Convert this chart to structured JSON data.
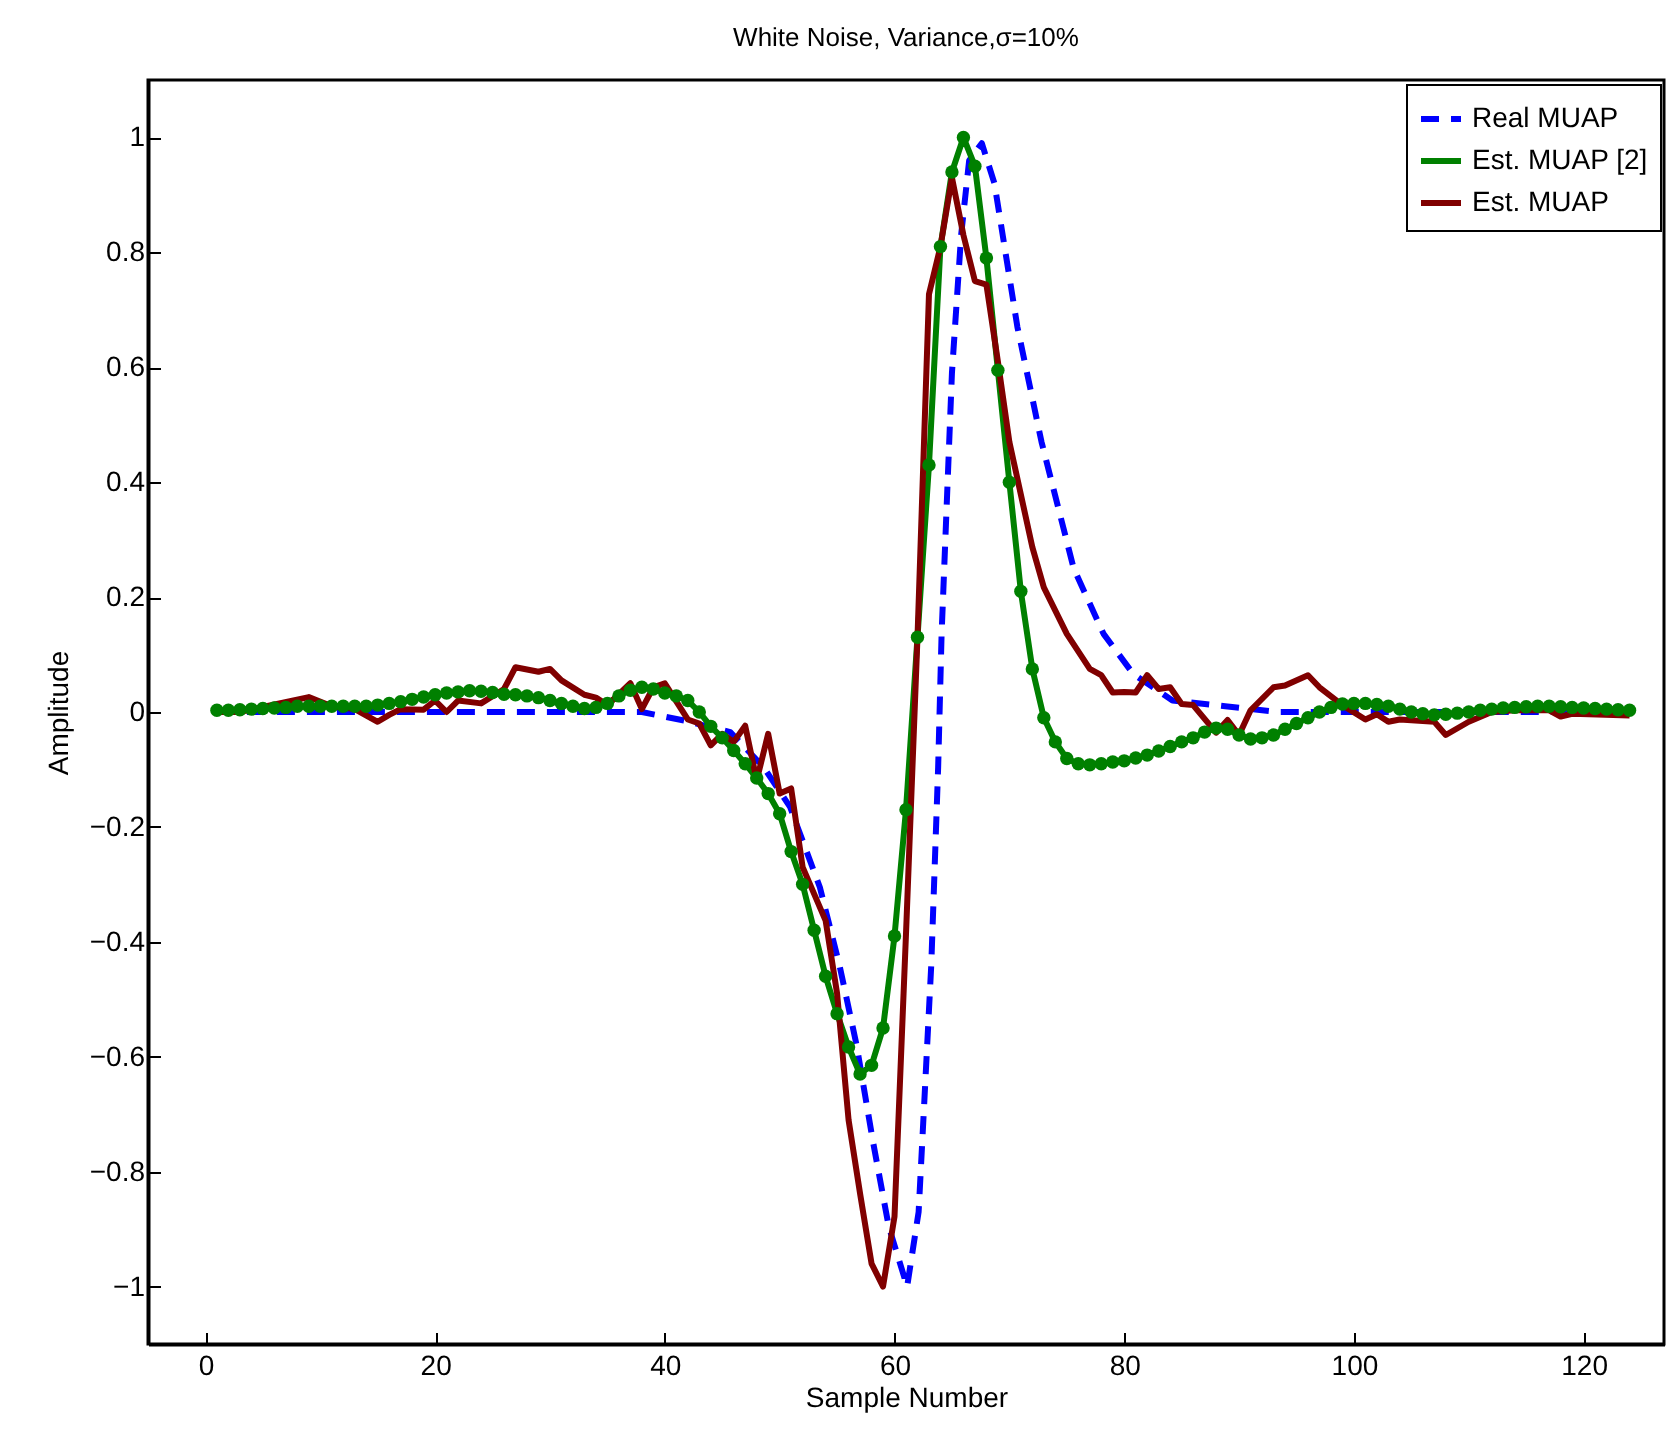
{
  "chart_data": {
    "type": "line",
    "title": "White Noise,  Variance,σ=10%",
    "xlabel": "Sample Number",
    "ylabel": "Amplitude",
    "xlim": [
      -5,
      127
    ],
    "xticks": [
      0,
      20,
      40,
      60,
      80,
      100,
      120
    ],
    "ylim": [
      -1.1,
      1.1
    ],
    "yticks": [
      -1,
      -0.8,
      -0.6,
      -0.4,
      -0.2,
      0,
      0.2,
      0.4,
      0.6,
      0.8,
      1
    ],
    "grid": false,
    "legend": "top right",
    "series": [
      {
        "name": "Real MUAP",
        "color": "#0000ff",
        "line_style": "dashed",
        "marker": "none",
        "x": [
          1,
          20,
          30,
          38,
          41.7,
          45.7,
          48.6,
          50.9,
          53.5,
          55.2,
          56.7,
          58.1,
          59.5,
          61.1,
          62.1,
          62.6,
          63.2,
          63.8,
          64.1,
          65,
          65.8,
          66.5,
          67.6,
          68.7,
          70.7,
          72.8,
          75.6,
          78.2,
          80.8,
          84.2,
          88.8,
          93.4,
          124
        ],
        "values": [
          0,
          0,
          0,
          0,
          -0.015,
          -0.035,
          -0.096,
          -0.165,
          -0.305,
          -0.44,
          -0.58,
          -0.745,
          -0.896,
          -1.0,
          -0.87,
          -0.676,
          -0.44,
          -0.096,
          0.136,
          0.59,
          0.83,
          0.96,
          0.99,
          0.92,
          0.67,
          0.47,
          0.25,
          0.136,
          0.066,
          0.02,
          0.01,
          0,
          0
        ]
      },
      {
        "name": "Est. MUAP [2]",
        "color": "#008000",
        "line_style": "solid",
        "marker": "circle",
        "x": [
          1,
          2,
          3,
          4,
          5,
          6,
          7,
          8,
          9,
          10,
          11,
          12,
          13,
          14,
          15,
          16,
          17,
          18,
          19,
          20,
          21,
          22,
          23,
          24,
          25,
          26,
          27,
          28,
          29,
          30,
          31,
          32,
          33,
          34,
          35,
          36,
          37,
          38,
          39,
          40,
          41,
          42,
          43,
          44,
          45,
          46,
          47,
          48,
          49,
          50,
          51,
          52,
          53,
          54,
          55,
          56,
          57,
          58,
          59,
          60,
          61,
          62,
          63,
          64,
          65,
          66,
          67,
          68,
          69,
          70,
          71,
          72,
          73,
          74,
          75,
          76,
          77,
          78,
          79,
          80,
          81,
          82,
          83,
          84,
          85,
          86,
          87,
          88,
          89,
          90,
          91,
          92,
          93,
          94,
          95,
          96,
          97,
          98,
          99,
          100,
          101,
          102,
          103,
          104,
          105,
          106,
          107,
          108,
          109,
          110,
          111,
          112,
          113,
          114,
          115,
          116,
          117,
          118,
          119,
          120,
          121,
          122,
          123,
          124
        ],
        "values": [
          0.003,
          0.003,
          0.004,
          0.005,
          0.006,
          0.007,
          0.008,
          0.01,
          0.01,
          0.01,
          0.01,
          0.01,
          0.01,
          0.01,
          0.012,
          0.015,
          0.018,
          0.022,
          0.026,
          0.03,
          0.033,
          0.035,
          0.037,
          0.036,
          0.034,
          0.031,
          0.03,
          0.028,
          0.025,
          0.02,
          0.015,
          0.01,
          0.006,
          0.008,
          0.015,
          0.028,
          0.038,
          0.043,
          0.04,
          0.033,
          0.028,
          0.02,
          0.0,
          -0.025,
          -0.045,
          -0.067,
          -0.09,
          -0.115,
          -0.142,
          -0.177,
          -0.243,
          -0.3,
          -0.38,
          -0.46,
          -0.525,
          -0.583,
          -0.63,
          -0.615,
          -0.55,
          -0.39,
          -0.17,
          0.13,
          0.43,
          0.81,
          0.94,
          1.0,
          0.95,
          0.79,
          0.595,
          0.4,
          0.21,
          0.075,
          -0.01,
          -0.052,
          -0.081,
          -0.09,
          -0.092,
          -0.09,
          -0.087,
          -0.085,
          -0.08,
          -0.075,
          -0.068,
          -0.06,
          -0.052,
          -0.045,
          -0.035,
          -0.028,
          -0.03,
          -0.04,
          -0.047,
          -0.045,
          -0.04,
          -0.03,
          -0.02,
          -0.01,
          0.0,
          0.008,
          0.014,
          0.015,
          0.015,
          0.013,
          0.01,
          0.005,
          0.0,
          -0.003,
          -0.005,
          -0.004,
          -0.002,
          0.0,
          0.003,
          0.005,
          0.007,
          0.008,
          0.009,
          0.01,
          0.01,
          0.009,
          0.008,
          0.007,
          0.006,
          0.005,
          0.004,
          0.003
        ]
      },
      {
        "name": "Est. MUAP",
        "color": "#800000",
        "line_style": "solid",
        "marker": "none",
        "x": [
          1,
          3,
          9,
          11,
          13,
          15,
          16,
          17,
          19,
          20,
          21,
          22,
          24,
          26,
          27,
          29,
          30,
          31,
          33,
          34,
          35,
          37,
          38,
          39,
          40,
          42,
          43,
          44,
          45,
          46,
          47,
          48,
          49,
          50,
          51,
          52,
          54,
          55,
          56,
          57,
          58,
          59,
          60,
          61,
          62,
          63,
          64,
          65,
          66,
          67,
          68,
          69,
          70,
          72,
          73,
          75,
          77,
          78,
          79,
          80,
          81,
          82,
          83,
          84,
          85,
          86,
          88,
          89,
          90,
          91,
          93,
          94,
          96,
          97,
          99,
          101,
          102,
          103,
          104,
          107,
          108,
          110,
          112,
          114,
          117,
          118,
          119,
          124
        ],
        "values": [
          0,
          0,
          0.026,
          0.01,
          0.005,
          -0.017,
          -0.005,
          0.005,
          0.004,
          0.02,
          0.0,
          0.02,
          0.015,
          0.04,
          0.078,
          0.07,
          0.075,
          0.055,
          0.03,
          0.025,
          0.012,
          0.05,
          0.005,
          0.043,
          0.05,
          -0.013,
          -0.02,
          -0.058,
          -0.038,
          -0.052,
          -0.024,
          -0.119,
          -0.038,
          -0.142,
          -0.133,
          -0.27,
          -0.363,
          -0.49,
          -0.71,
          -0.838,
          -0.96,
          -1.0,
          -0.878,
          -0.386,
          0.13,
          0.727,
          0.81,
          0.93,
          0.83,
          0.75,
          0.744,
          0.61,
          0.47,
          0.287,
          0.217,
          0.136,
          0.075,
          0.064,
          0.034,
          0.035,
          0.034,
          0.064,
          0.04,
          0.043,
          0.014,
          0.012,
          -0.036,
          -0.014,
          -0.04,
          0.003,
          0.043,
          0.046,
          0.064,
          0.043,
          0.012,
          -0.013,
          -0.004,
          -0.017,
          -0.013,
          -0.017,
          -0.04,
          -0.017,
          0.0,
          0.003,
          0.003,
          -0.008,
          -0.003,
          -0.006
        ]
      }
    ]
  }
}
